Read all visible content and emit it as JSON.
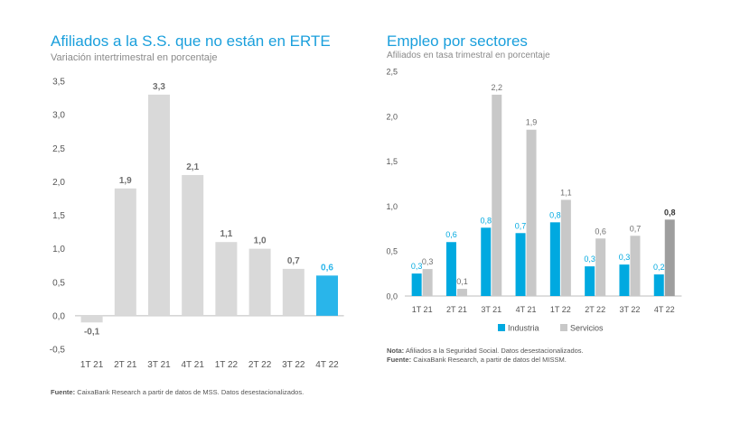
{
  "left_chart": {
    "title": "Afiliados a la S.S. que no están en ERTE",
    "subtitle": "Variación intertrimestral en porcentaje",
    "source_label": "Fuente:",
    "source_text": "CaixaBank Research a partir de datos de MSS. Datos desestacionalizados."
  },
  "right_chart": {
    "title": "Empleo por sectores",
    "subtitle": "Afiliados en tasa trimestral en porcentaje",
    "note_label": "Nota:",
    "note_text": "Afiliados a la Seguridad Social. Datos desestacionalizados.",
    "source_label": "Fuente:",
    "source_text": "CaixaBank Research, a partir de datos del MISSM."
  },
  "colors": {
    "gray_bar": "#d9d9d9",
    "highlight_blue": "#29b5ea",
    "industria": "#00a9e0",
    "servicios": "#c8c8c8",
    "servicios_highlight": "#9e9e9e"
  },
  "chart_data": [
    {
      "type": "bar",
      "title": "Afiliados a la S.S. que no están en ERTE",
      "subtitle": "Variación intertrimestral en porcentaje",
      "categories": [
        "1T 21",
        "2T 21",
        "3T 21",
        "4T 21",
        "1T 22",
        "2T 22",
        "3T 22",
        "4T 22"
      ],
      "values": [
        -0.1,
        1.9,
        3.3,
        2.1,
        1.1,
        1.0,
        0.7,
        0.6
      ],
      "value_labels": [
        "-0,1",
        "1,9",
        "3,3",
        "2,1",
        "1,1",
        "1,0",
        "0,7",
        "0,6"
      ],
      "ylim": [
        -0.5,
        3.5
      ],
      "yticks": [
        -0.5,
        0,
        0.5,
        1,
        1.5,
        2,
        2.5,
        3,
        3.5
      ],
      "ytick_labels": [
        "-0,5",
        "0,0",
        "0,5",
        "1,0",
        "1,5",
        "2,0",
        "2,5",
        "3,0",
        "3,5"
      ],
      "highlight_index": 7,
      "grid": false
    },
    {
      "type": "bar",
      "title": "Empleo por sectores",
      "subtitle": "Afiliados en tasa trimestral en porcentaje",
      "categories": [
        "1T 21",
        "2T 21",
        "3T 21",
        "4T 21",
        "1T 22",
        "2T 22",
        "3T 22",
        "4T 22"
      ],
      "series": [
        {
          "name": "Industria",
          "values": [
            0.25,
            0.6,
            0.76,
            0.7,
            0.82,
            0.33,
            0.35,
            0.24
          ],
          "value_labels": [
            "0,3",
            "0,6",
            "0,8",
            "0,7",
            "0,8",
            "0,3",
            "0,3",
            "0,2"
          ]
        },
        {
          "name": "Servicios",
          "values": [
            0.3,
            0.08,
            2.24,
            1.85,
            1.07,
            0.64,
            0.67,
            0.85
          ],
          "value_labels": [
            "0,3",
            "0,1",
            "2,2",
            "1,9",
            "1,1",
            "0,6",
            "0,7",
            "0,8"
          ]
        }
      ],
      "ylim": [
        0,
        2.5
      ],
      "yticks": [
        0,
        0.5,
        1,
        1.5,
        2,
        2.5
      ],
      "ytick_labels": [
        "0,0",
        "0,5",
        "1,0",
        "1,5",
        "2,0",
        "2,5"
      ],
      "legend_position": "bottom",
      "grid": false
    }
  ]
}
